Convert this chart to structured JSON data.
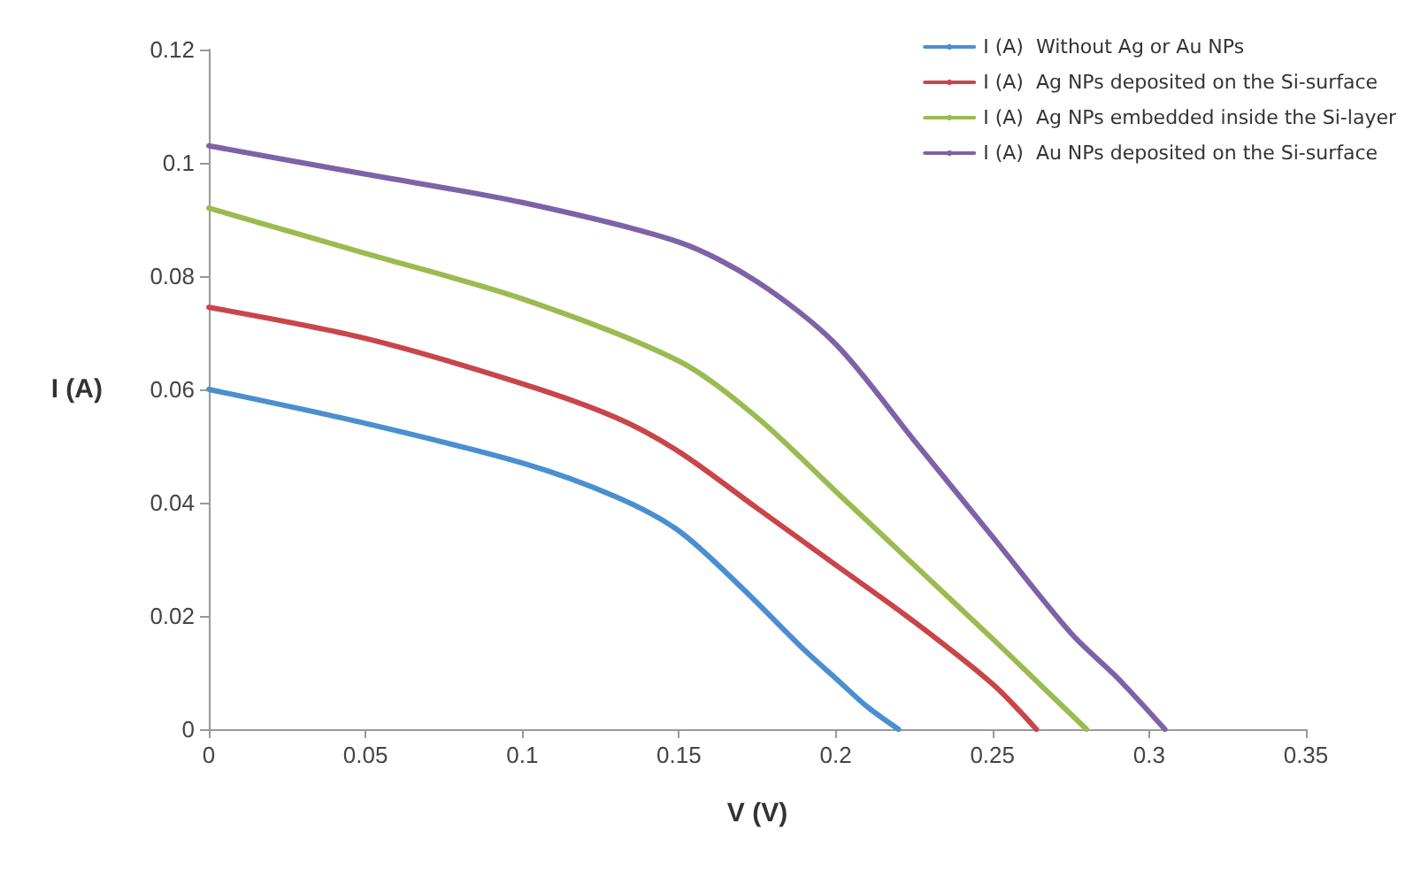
{
  "chart_data": {
    "type": "line",
    "xlabel": "V (V)",
    "ylabel": "I (A)",
    "xlim": [
      0,
      0.35
    ],
    "xticks": [
      0,
      0.05,
      0.1,
      0.15,
      0.2,
      0.25,
      0.3,
      0.35
    ],
    "ylim": [
      0,
      0.12
    ],
    "yticks": [
      0,
      0.02,
      0.04,
      0.06,
      0.08,
      0.1,
      0.12
    ],
    "grid": false,
    "legend": "top right",
    "marker": "none",
    "line_style": "solid",
    "series": [
      {
        "name": "I (A)  Without Ag or Au NPs",
        "color": "#4a8fd0",
        "x": [
          0,
          0.05,
          0.1,
          0.13,
          0.15,
          0.17,
          0.19,
          0.2,
          0.21,
          0.22
        ],
        "values": [
          0.06,
          0.054,
          0.047,
          0.041,
          0.035,
          0.025,
          0.014,
          0.009,
          0.004,
          0
        ]
      },
      {
        "name": "I (A)  Ag NPs deposited on the Si-surface",
        "color": "#c9454a",
        "x": [
          0,
          0.05,
          0.1,
          0.13,
          0.15,
          0.175,
          0.2,
          0.225,
          0.25,
          0.264
        ],
        "values": [
          0.0745,
          0.069,
          0.061,
          0.055,
          0.049,
          0.039,
          0.029,
          0.019,
          0.008,
          0
        ]
      },
      {
        "name": "I (A)  Ag NPs embedded inside the Si-layer",
        "color": "#9bbb50",
        "x": [
          0,
          0.05,
          0.1,
          0.15,
          0.175,
          0.2,
          0.225,
          0.25,
          0.265,
          0.28
        ],
        "values": [
          0.092,
          0.084,
          0.076,
          0.065,
          0.055,
          0.042,
          0.029,
          0.016,
          0.008,
          0
        ]
      },
      {
        "name": "I (A)  Au NPs deposited on the Si-surface",
        "color": "#7e62a8",
        "x": [
          0,
          0.05,
          0.1,
          0.15,
          0.175,
          0.2,
          0.225,
          0.25,
          0.275,
          0.29,
          0.305
        ],
        "values": [
          0.103,
          0.098,
          0.093,
          0.086,
          0.079,
          0.068,
          0.051,
          0.034,
          0.017,
          0.009,
          0
        ]
      }
    ]
  }
}
